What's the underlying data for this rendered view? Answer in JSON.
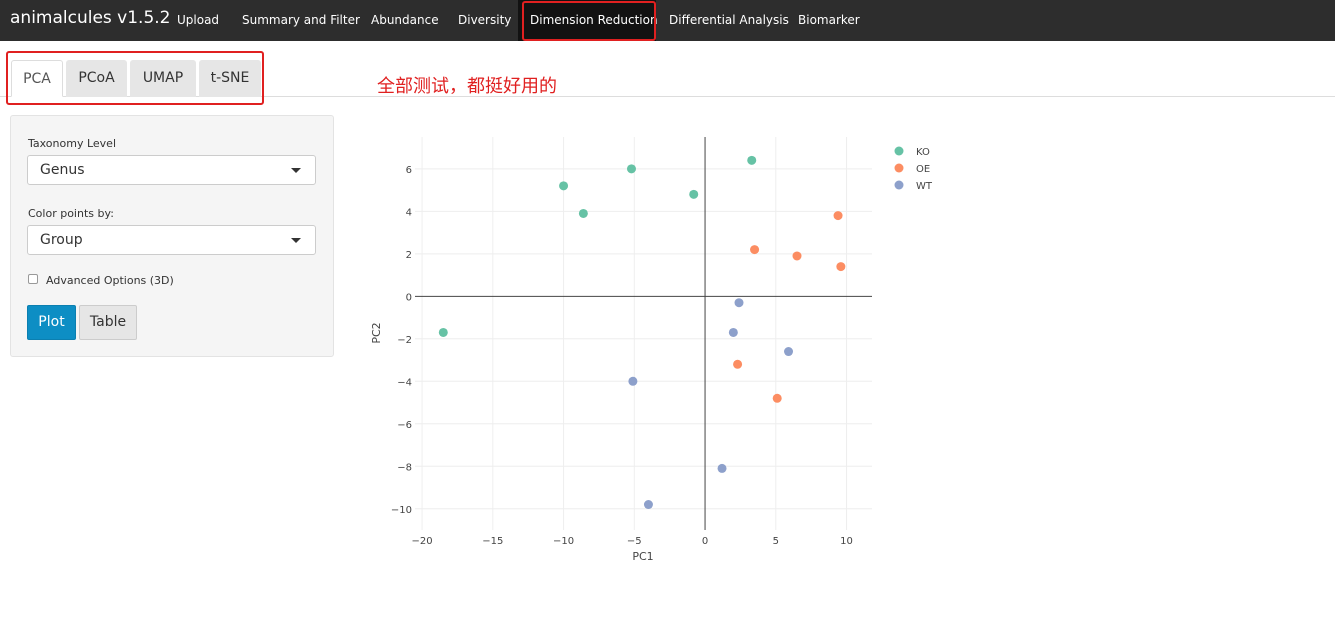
{
  "navbar": {
    "brand": "animalcules v1.5.2",
    "items": [
      {
        "label": "Upload"
      },
      {
        "label": "Summary and Filter"
      },
      {
        "label": "Abundance"
      },
      {
        "label": "Diversity"
      },
      {
        "label": "Dimension Reduction",
        "active": true
      },
      {
        "label": "Differential Analysis"
      },
      {
        "label": "Biomarker"
      }
    ]
  },
  "tabs": [
    {
      "label": "PCA",
      "active": true
    },
    {
      "label": "PCoA"
    },
    {
      "label": "UMAP"
    },
    {
      "label": "t-SNE"
    }
  ],
  "annotation": "全部测试，都挺好用的",
  "sidebar": {
    "taxonomy_label": "Taxonomy Level",
    "taxonomy_value": "Genus",
    "color_label": "Color points by:",
    "color_value": "Group",
    "advanced_label": "Advanced Options (3D)",
    "plot_button": "Plot",
    "table_button": "Table"
  },
  "colors": {
    "highlight": "#e02020",
    "primary_button": "#0d8ec4",
    "KO": "#66c2a5",
    "OE": "#fc8d62",
    "WT": "#8da0cb"
  },
  "chart_data": {
    "type": "scatter",
    "xlabel": "PC1",
    "ylabel": "PC2",
    "xlim": [
      -20.5,
      11.8
    ],
    "ylim": [
      -11,
      7.5
    ],
    "x_ticks": [
      -20,
      -15,
      -10,
      -5,
      0,
      5,
      10
    ],
    "y_ticks": [
      -10,
      -8,
      -6,
      -4,
      -2,
      0,
      2,
      4,
      6
    ],
    "x_tick_labels": [
      "−20",
      "−15",
      "−10",
      "−5",
      "0",
      "5",
      "10"
    ],
    "y_tick_labels": [
      "−10",
      "−8",
      "−6",
      "−4",
      "−2",
      "0",
      "2",
      "4",
      "6"
    ],
    "grid": true,
    "legend_position": "right",
    "series": [
      {
        "name": "KO",
        "color": "#66c2a5",
        "points": [
          [
            -18.5,
            -1.7
          ],
          [
            -10.0,
            5.2
          ],
          [
            -8.6,
            3.9
          ],
          [
            -5.2,
            6.0
          ],
          [
            -0.8,
            4.8
          ],
          [
            3.3,
            6.4
          ]
        ]
      },
      {
        "name": "OE",
        "color": "#fc8d62",
        "points": [
          [
            3.5,
            2.2
          ],
          [
            6.5,
            1.9
          ],
          [
            9.4,
            3.8
          ],
          [
            9.6,
            1.4
          ],
          [
            2.3,
            -3.2
          ],
          [
            5.1,
            -4.8
          ]
        ]
      },
      {
        "name": "WT",
        "color": "#8da0cb",
        "points": [
          [
            2.4,
            -0.3
          ],
          [
            2.0,
            -1.7
          ],
          [
            5.9,
            -2.6
          ],
          [
            -5.1,
            -4.0
          ],
          [
            1.2,
            -8.1
          ],
          [
            -4.0,
            -9.8
          ]
        ]
      }
    ]
  }
}
